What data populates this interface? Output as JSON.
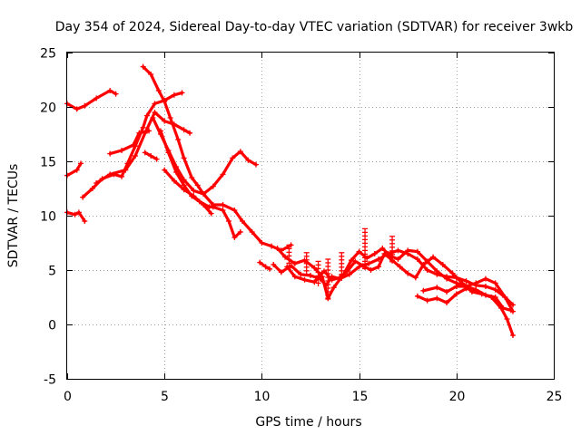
{
  "chart_data": {
    "type": "scatter",
    "title": "Day 354 of 2024, Sidereal Day-to-day VTEC variation (SDTVAR) for receiver 3wkb",
    "xlabel": "GPS time / hours",
    "ylabel": "SDTVAR / TECUs",
    "xlim": [
      0,
      25
    ],
    "ylim": [
      -5,
      25
    ],
    "xticks": [
      "0",
      "5",
      "10",
      "15",
      "20",
      "25"
    ],
    "yticks": [
      "-5",
      "0",
      "5",
      "10",
      "15",
      "20",
      "25"
    ],
    "grid": true,
    "marker": "+",
    "color": "#ff0000",
    "series": [
      {
        "name": "track-1",
        "points": [
          [
            0,
            20.3
          ],
          [
            0.5,
            19.8
          ],
          [
            0.9,
            20.1
          ],
          [
            1.5,
            20.8
          ],
          [
            2.2,
            21.5
          ],
          [
            2.5,
            21.2
          ]
        ]
      },
      {
        "name": "track-2",
        "points": [
          [
            0,
            13.7
          ],
          [
            0.5,
            14.2
          ],
          [
            0.7,
            14.8
          ]
        ]
      },
      {
        "name": "track-3",
        "points": [
          [
            0,
            10.3
          ],
          [
            0.4,
            10.1
          ],
          [
            0.6,
            10.3
          ],
          [
            0.9,
            9.5
          ]
        ]
      },
      {
        "name": "track-4",
        "points": [
          [
            0.8,
            11.7
          ],
          [
            1.3,
            12.5
          ],
          [
            1.8,
            13.4
          ],
          [
            2.4,
            13.8
          ],
          [
            2.8,
            13.6
          ],
          [
            3.1,
            14.8
          ],
          [
            3.5,
            16.4
          ],
          [
            3.9,
            18.1
          ],
          [
            4.1,
            19.2
          ],
          [
            4.5,
            20.3
          ],
          [
            5.0,
            20.6
          ],
          [
            5.5,
            21.1
          ],
          [
            5.9,
            21.3
          ]
        ]
      },
      {
        "name": "track-5",
        "points": [
          [
            1.5,
            13.0
          ],
          [
            2.2,
            13.8
          ],
          [
            3.0,
            14.2
          ],
          [
            3.5,
            15.5
          ],
          [
            4.0,
            17.6
          ],
          [
            4.5,
            19.5
          ],
          [
            5.0,
            18.7
          ],
          [
            5.5,
            18.4
          ],
          [
            6.0,
            17.9
          ],
          [
            6.3,
            17.6
          ]
        ]
      },
      {
        "name": "track-6",
        "points": [
          [
            2.2,
            15.7
          ],
          [
            2.8,
            16.0
          ],
          [
            3.4,
            16.5
          ],
          [
            3.7,
            17.6
          ],
          [
            4.2,
            17.8
          ]
        ]
      },
      {
        "name": "track-7",
        "points": [
          [
            4.0,
            15.8
          ],
          [
            4.3,
            15.5
          ],
          [
            4.6,
            15.2
          ]
        ]
      },
      {
        "name": "track-8",
        "points": [
          [
            3.9,
            23.7
          ],
          [
            4.3,
            23.0
          ],
          [
            4.7,
            21.5
          ],
          [
            5.0,
            20.5
          ],
          [
            5.3,
            19.0
          ],
          [
            5.7,
            17.0
          ],
          [
            6.0,
            15.3
          ],
          [
            6.4,
            13.5
          ],
          [
            6.7,
            12.8
          ],
          [
            7.0,
            12.0
          ],
          [
            7.5,
            11.0
          ],
          [
            8.0,
            11.0
          ],
          [
            8.6,
            10.5
          ],
          [
            9.0,
            9.5
          ],
          [
            9.5,
            8.5
          ],
          [
            10.0,
            7.5
          ],
          [
            10.5,
            7.2
          ],
          [
            11.0,
            6.8
          ],
          [
            11.5,
            7.3
          ]
        ]
      },
      {
        "name": "track-9",
        "points": [
          [
            4.4,
            19.0
          ],
          [
            4.8,
            17.5
          ],
          [
            5.2,
            16.0
          ],
          [
            5.6,
            14.5
          ],
          [
            6.0,
            13.3
          ],
          [
            6.5,
            12.3
          ],
          [
            7.0,
            12.0
          ],
          [
            7.5,
            12.7
          ],
          [
            8.0,
            13.8
          ],
          [
            8.5,
            15.3
          ],
          [
            8.9,
            15.9
          ],
          [
            9.3,
            15.1
          ],
          [
            9.7,
            14.7
          ]
        ]
      },
      {
        "name": "track-10",
        "points": [
          [
            4.8,
            17.8
          ],
          [
            5.2,
            15.8
          ],
          [
            5.6,
            14.0
          ],
          [
            6.0,
            12.8
          ],
          [
            6.4,
            11.8
          ],
          [
            6.8,
            11.3
          ],
          [
            7.3,
            10.8
          ],
          [
            7.5,
            10.8
          ],
          [
            8.0,
            10.5
          ],
          [
            8.3,
            9.5
          ],
          [
            8.6,
            8.0
          ],
          [
            8.9,
            8.5
          ]
        ]
      },
      {
        "name": "track-11",
        "points": [
          [
            5.0,
            14.2
          ],
          [
            5.5,
            13.2
          ],
          [
            6.0,
            12.4
          ],
          [
            6.5,
            11.8
          ],
          [
            7.0,
            11.0
          ],
          [
            7.4,
            10.2
          ]
        ]
      },
      {
        "name": "track-12",
        "points": [
          [
            9.9,
            5.7
          ],
          [
            10.2,
            5.3
          ],
          [
            10.4,
            5.1
          ]
        ]
      },
      {
        "name": "track-13",
        "points": [
          [
            10.6,
            5.5
          ],
          [
            11.0,
            4.8
          ],
          [
            11.5,
            5.4
          ],
          [
            12.0,
            4.6
          ],
          [
            12.5,
            4.5
          ],
          [
            13.0,
            4.2
          ],
          [
            13.3,
            3.6
          ],
          [
            13.6,
            4.4
          ],
          [
            14.0,
            4.2
          ],
          [
            14.5,
            4.6
          ],
          [
            15.0,
            5.3
          ],
          [
            15.5,
            5.6
          ],
          [
            16.0,
            6.0
          ],
          [
            16.5,
            6.5
          ],
          [
            17.0,
            6.8
          ],
          [
            17.5,
            6.5
          ],
          [
            18.0,
            6.0
          ],
          [
            18.5,
            5.0
          ],
          [
            19.0,
            4.6
          ],
          [
            19.5,
            4.4
          ],
          [
            20.0,
            4.3
          ],
          [
            20.5,
            4.0
          ],
          [
            21.0,
            3.6
          ],
          [
            21.5,
            3.5
          ],
          [
            22.0,
            3.2
          ],
          [
            22.5,
            2.5
          ],
          [
            22.9,
            1.8
          ]
        ]
      },
      {
        "name": "track-14",
        "points": [
          [
            10.8,
            7.0
          ],
          [
            11.2,
            6.2
          ],
          [
            11.7,
            5.6
          ],
          [
            12.2,
            5.9
          ],
          [
            12.7,
            5.2
          ],
          [
            13.1,
            4.4
          ],
          [
            13.4,
            2.4
          ],
          [
            13.7,
            3.4
          ],
          [
            14.2,
            4.6
          ],
          [
            14.6,
            5.9
          ],
          [
            15.0,
            6.7
          ],
          [
            15.4,
            6.1
          ],
          [
            15.8,
            6.5
          ],
          [
            16.2,
            7.0
          ],
          [
            16.6,
            6.3
          ],
          [
            17.0,
            6.0
          ],
          [
            17.5,
            6.8
          ],
          [
            18.0,
            6.7
          ],
          [
            18.5,
            5.8
          ],
          [
            19.0,
            4.9
          ],
          [
            19.5,
            4.2
          ],
          [
            20.0,
            3.8
          ],
          [
            20.5,
            3.5
          ],
          [
            21.0,
            3.8
          ],
          [
            21.5,
            4.2
          ],
          [
            22.0,
            3.8
          ],
          [
            22.5,
            2.5
          ],
          [
            22.9,
            1.2
          ]
        ]
      },
      {
        "name": "track-15",
        "points": [
          [
            11.3,
            5.3
          ],
          [
            11.7,
            4.4
          ],
          [
            12.2,
            4.1
          ],
          [
            12.7,
            3.9
          ],
          [
            13.2,
            4.9
          ],
          [
            13.6,
            4.1
          ],
          [
            14.0,
            4.3
          ],
          [
            14.4,
            4.9
          ],
          [
            14.8,
            5.8
          ],
          [
            15.2,
            5.4
          ],
          [
            15.6,
            5.0
          ],
          [
            16.0,
            5.3
          ],
          [
            16.3,
            6.5
          ],
          [
            16.7,
            5.9
          ],
          [
            17.1,
            5.3
          ],
          [
            17.5,
            4.7
          ],
          [
            17.9,
            4.3
          ],
          [
            18.3,
            5.5
          ],
          [
            18.8,
            6.2
          ],
          [
            19.3,
            5.5
          ],
          [
            19.8,
            4.7
          ],
          [
            20.3,
            3.8
          ],
          [
            20.8,
            3.0
          ],
          [
            21.3,
            2.8
          ],
          [
            21.8,
            2.5
          ],
          [
            22.3,
            1.5
          ],
          [
            22.6,
            0.5
          ],
          [
            22.9,
            -1.0
          ]
        ]
      },
      {
        "name": "track-16",
        "points": [
          [
            18.0,
            2.6
          ],
          [
            18.5,
            2.2
          ],
          [
            19.0,
            2.4
          ],
          [
            19.5,
            2.0
          ],
          [
            20.0,
            2.8
          ],
          [
            20.5,
            3.3
          ],
          [
            21.0,
            3.1
          ]
        ]
      },
      {
        "name": "track-17",
        "points": [
          [
            18.3,
            3.1
          ],
          [
            19.0,
            3.4
          ],
          [
            19.5,
            3.0
          ],
          [
            20.0,
            3.5
          ],
          [
            20.5,
            3.5
          ],
          [
            21.0,
            3.2
          ],
          [
            21.5,
            2.7
          ],
          [
            22.0,
            2.5
          ],
          [
            22.4,
            1.5
          ],
          [
            22.8,
            1.3
          ]
        ]
      }
    ],
    "spikes": [
      {
        "x": 11.4,
        "y_low": 5.2,
        "y_high": 7.3
      },
      {
        "x": 12.3,
        "y_low": 4.6,
        "y_high": 6.6
      },
      {
        "x": 12.9,
        "y_low": 3.5,
        "y_high": 5.8
      },
      {
        "x": 13.4,
        "y_low": 2.2,
        "y_high": 6.0
      },
      {
        "x": 14.1,
        "y_low": 4.0,
        "y_high": 6.6
      },
      {
        "x": 15.3,
        "y_low": 5.0,
        "y_high": 8.8
      },
      {
        "x": 16.7,
        "y_low": 5.6,
        "y_high": 8.1
      }
    ]
  }
}
